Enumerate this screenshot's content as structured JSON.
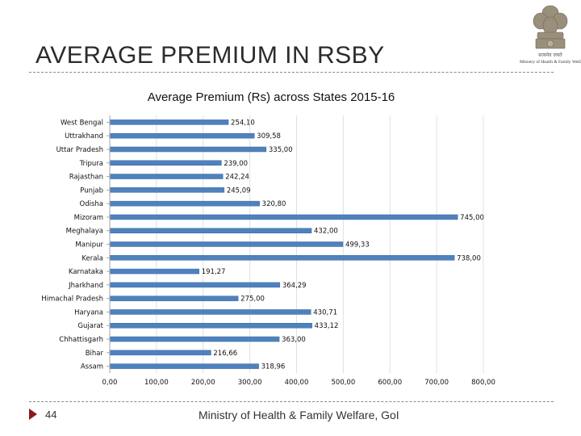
{
  "slide": {
    "title": "AVERAGE PREMIUM IN RSBY",
    "emblem_caption": "Ministry of Health & Family Welfare",
    "page_number": "44",
    "footer": "Ministry of Health & Family Welfare, GoI"
  },
  "colors": {
    "bar": "#4f81bd",
    "bar_edge": "#3a6aa6",
    "grid": "#e0e0e0",
    "axis": "#a6a6a6",
    "footer_arrow": "#8b1a1a"
  },
  "chart_data": {
    "type": "bar",
    "orientation": "horizontal",
    "title": "Average Premium (Rs) across States 2015-16",
    "xlabel": "",
    "ylabel": "",
    "xlim": [
      0,
      800
    ],
    "grid": true,
    "categories": [
      "West Bengal",
      "Uttrakhand",
      "Uttar Pradesh",
      "Tripura",
      "Rajasthan",
      "Punjab",
      "Odisha",
      "Mizoram",
      "Meghalaya",
      "Manipur",
      "Kerala",
      "Karnataka",
      "Jharkhand",
      "Himachal Pradesh",
      "Haryana",
      "Gujarat",
      "Chhattisgarh",
      "Bihar",
      "Assam"
    ],
    "values": [
      254.1,
      309.58,
      335.0,
      239.0,
      242.24,
      245.09,
      320.8,
      745.0,
      432.0,
      499.33,
      738.0,
      191.27,
      364.29,
      275.0,
      430.71,
      433.12,
      363.0,
      216.66,
      318.96
    ],
    "value_labels": [
      "254,10",
      "309,58",
      "335,00",
      "239,00",
      "242,24",
      "245,09",
      "320,80",
      "745,00",
      "432,00",
      "499,33",
      "738,00",
      "191,27",
      "364,29",
      "275,00",
      "430,71",
      "433,12",
      "363,00",
      "216,66",
      "318,96"
    ],
    "x_ticks": [
      0,
      100,
      200,
      300,
      400,
      500,
      600,
      700,
      800
    ],
    "x_tick_labels": [
      "0,00",
      "100,00",
      "200,00",
      "300,00",
      "400,00",
      "500,00",
      "600,00",
      "700,00",
      "800,00"
    ]
  }
}
